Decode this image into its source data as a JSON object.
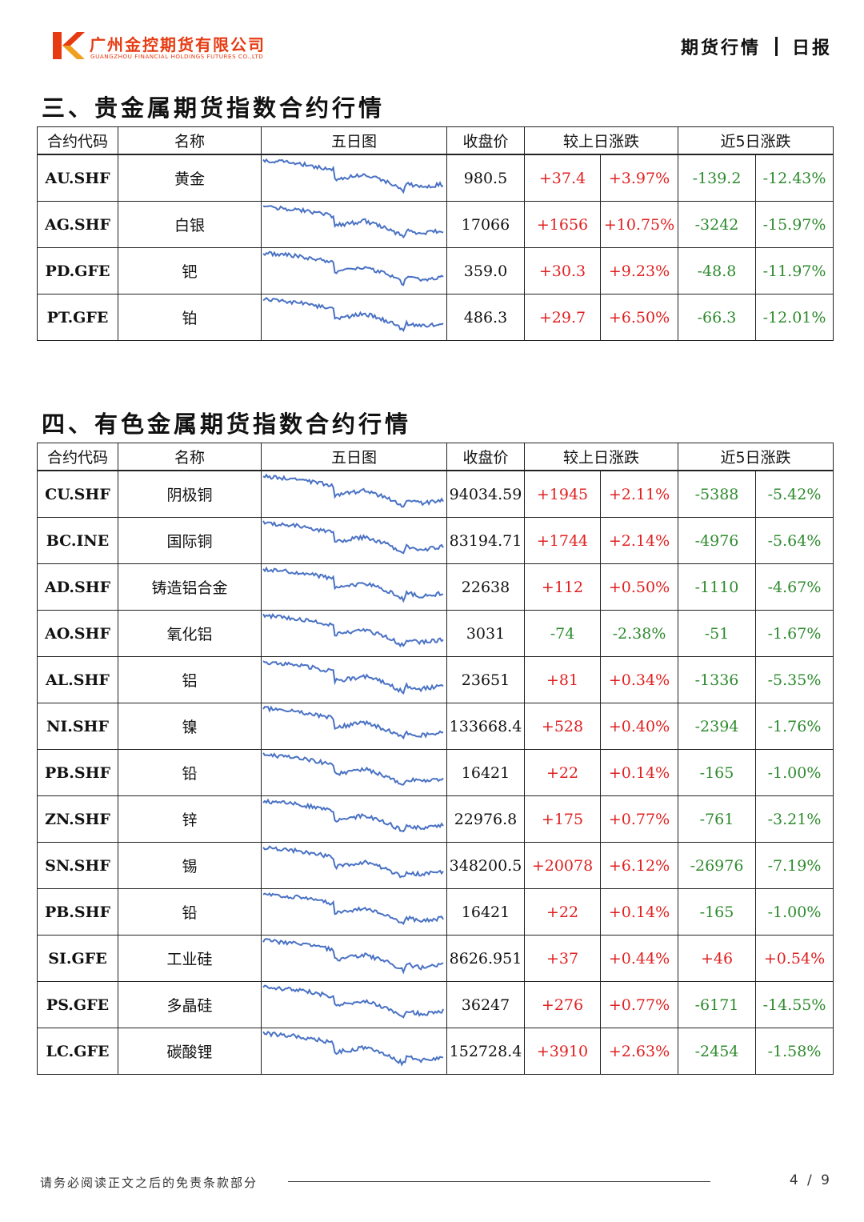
{
  "header": {
    "company_cn": "广州金控期货有限公司",
    "company_en": "GUANGZHOU FINANCIAL HOLDINGS FUTURES CO.,LTD",
    "report_type": "期货行情",
    "report_freq": "日报"
  },
  "colors": {
    "up": "#e02020",
    "down": "#2e8b2e",
    "sparkline": "#4a72c4",
    "brand": "#e63b12"
  },
  "columns": [
    "合约代码",
    "名称",
    "五日图",
    "收盘价",
    "较上日涨跌",
    "近5日涨跌"
  ],
  "section3": {
    "title": "三、贵金属期货指数合约行情",
    "rows": [
      {
        "code": "AU.SHF",
        "name": "黄金",
        "close": "980.5",
        "chg": "+37.4",
        "chg_pct": "+3.97%",
        "chg5": "-139.2",
        "chg5_pct": "-12.43%"
      },
      {
        "code": "AG.SHF",
        "name": "白银",
        "close": "17066",
        "chg": "+1656",
        "chg_pct": "+10.75%",
        "chg5": "-3242",
        "chg5_pct": "-15.97%"
      },
      {
        "code": "PD.GFE",
        "name": "钯",
        "close": "359.0",
        "chg": "+30.3",
        "chg_pct": "+9.23%",
        "chg5": "-48.8",
        "chg5_pct": "-11.97%"
      },
      {
        "code": "PT.GFE",
        "name": "铂",
        "close": "486.3",
        "chg": "+29.7",
        "chg_pct": "+6.50%",
        "chg5": "-66.3",
        "chg5_pct": "-12.01%"
      }
    ]
  },
  "section4": {
    "title": "四、有色金属期货指数合约行情",
    "rows": [
      {
        "code": "CU.SHF",
        "name": "阴极铜",
        "close": "94034.59",
        "chg": "+1945",
        "chg_pct": "+2.11%",
        "chg5": "-5388",
        "chg5_pct": "-5.42%"
      },
      {
        "code": "BC.INE",
        "name": "国际铜",
        "close": "83194.71",
        "chg": "+1744",
        "chg_pct": "+2.14%",
        "chg5": "-4976",
        "chg5_pct": "-5.64%"
      },
      {
        "code": "AD.SHF",
        "name": "铸造铝合金",
        "close": "22638",
        "chg": "+112",
        "chg_pct": "+0.50%",
        "chg5": "-1110",
        "chg5_pct": "-4.67%"
      },
      {
        "code": "AO.SHF",
        "name": "氧化铝",
        "close": "3031",
        "chg": "-74",
        "chg_pct": "-2.38%",
        "chg5": "-51",
        "chg5_pct": "-1.67%"
      },
      {
        "code": "AL.SHF",
        "name": "铝",
        "close": "23651",
        "chg": "+81",
        "chg_pct": "+0.34%",
        "chg5": "-1336",
        "chg5_pct": "-5.35%"
      },
      {
        "code": "NI.SHF",
        "name": "镍",
        "close": "133668.4",
        "chg": "+528",
        "chg_pct": "+0.40%",
        "chg5": "-2394",
        "chg5_pct": "-1.76%"
      },
      {
        "code": "PB.SHF",
        "name": "铅",
        "close": "16421",
        "chg": "+22",
        "chg_pct": "+0.14%",
        "chg5": "-165",
        "chg5_pct": "-1.00%"
      },
      {
        "code": "ZN.SHF",
        "name": "锌",
        "close": "22976.8",
        "chg": "+175",
        "chg_pct": "+0.77%",
        "chg5": "-761",
        "chg5_pct": "-3.21%"
      },
      {
        "code": "SN.SHF",
        "name": "锡",
        "close": "348200.5",
        "chg": "+20078",
        "chg_pct": "+6.12%",
        "chg5": "-26976",
        "chg5_pct": "-7.19%"
      },
      {
        "code": "PB.SHF",
        "name": "铅",
        "close": "16421",
        "chg": "+22",
        "chg_pct": "+0.14%",
        "chg5": "-165",
        "chg5_pct": "-1.00%"
      },
      {
        "code": "SI.GFE",
        "name": "工业硅",
        "close": "8626.951",
        "chg": "+37",
        "chg_pct": "+0.44%",
        "chg5": "+46",
        "chg5_pct": "+0.54%"
      },
      {
        "code": "PS.GFE",
        "name": "多晶硅",
        "close": "36247",
        "chg": "+276",
        "chg_pct": "+0.77%",
        "chg5": "-6171",
        "chg5_pct": "-14.55%"
      },
      {
        "code": "LC.GFE",
        "name": "碳酸锂",
        "close": "152728.4",
        "chg": "+3910",
        "chg_pct": "+2.63%",
        "chg5": "-2454",
        "chg5_pct": "-1.58%"
      }
    ]
  },
  "footer": {
    "disclaimer": "请务必阅读正文之后的免责条款部分",
    "page": "4 / 9"
  }
}
